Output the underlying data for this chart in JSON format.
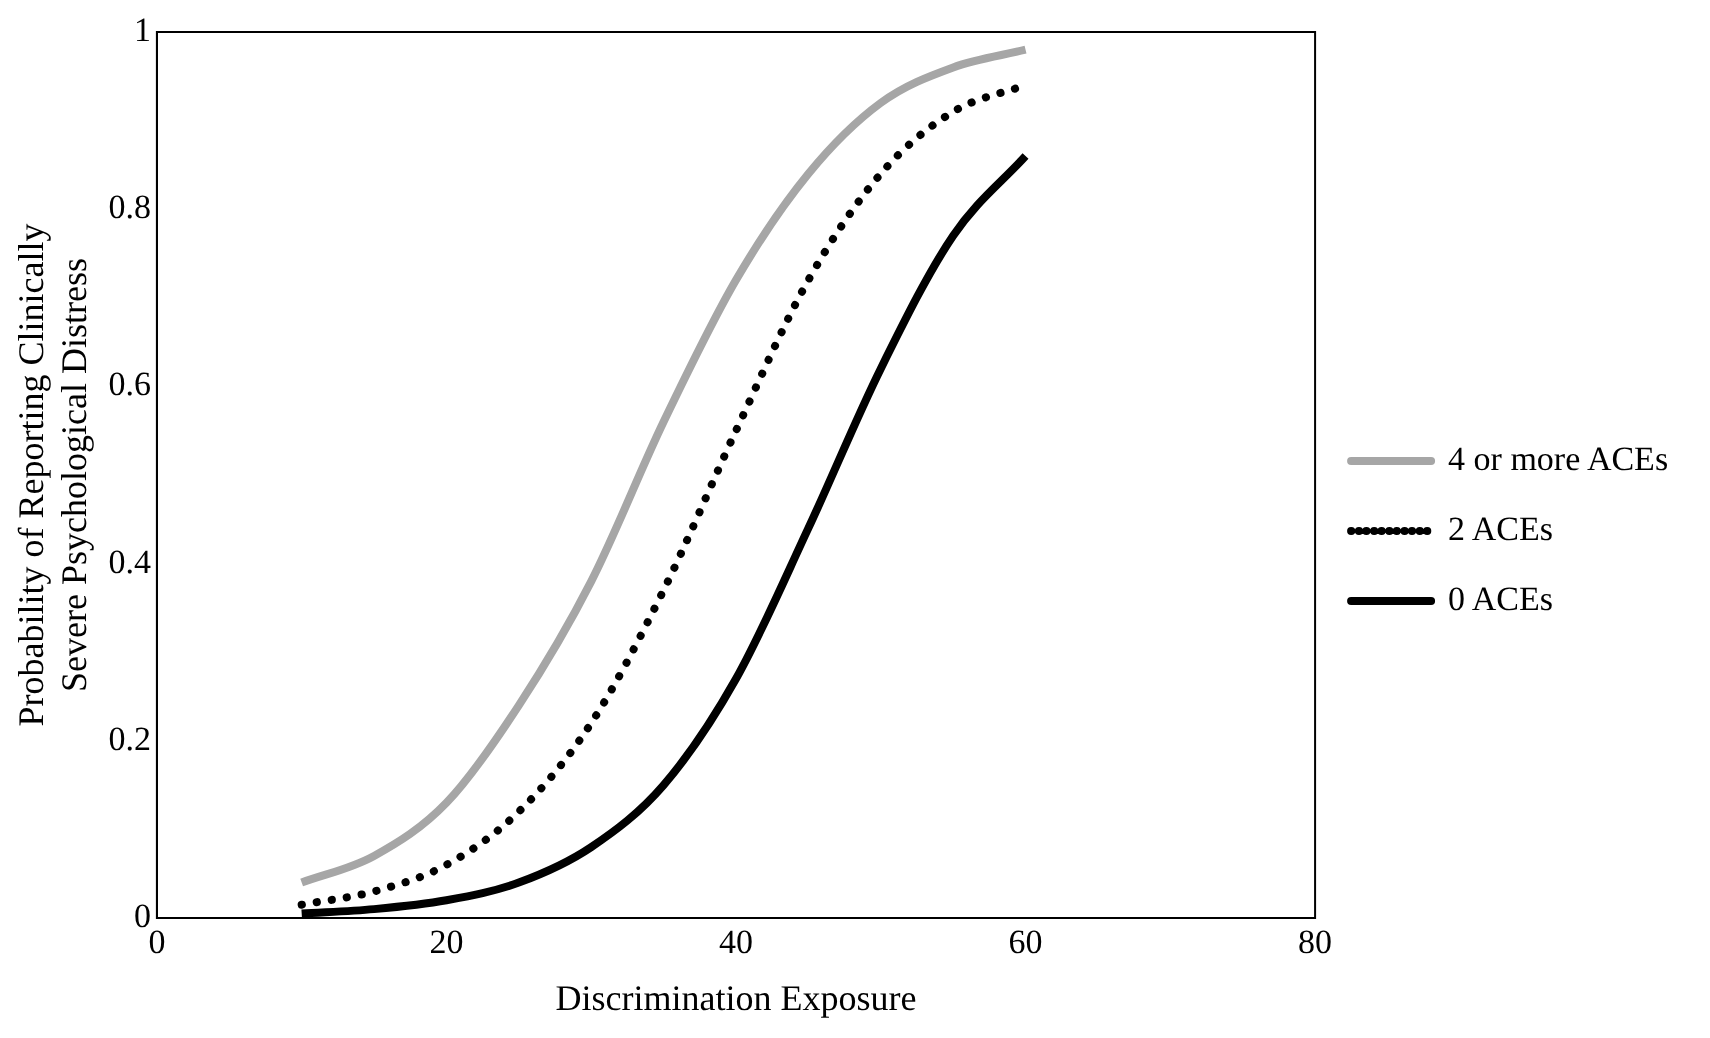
{
  "chart_data": {
    "type": "line",
    "xlabel": "Discrimination Exposure",
    "ylabel": "Probability of Reporting Clinically Severe Psychological Distress",
    "x": [
      10,
      15,
      20,
      25,
      30,
      35,
      40,
      45,
      50,
      55,
      60
    ],
    "xlim": [
      0,
      80
    ],
    "xticks": [
      0,
      20,
      40,
      60,
      80
    ],
    "ylim": [
      0,
      1
    ],
    "yticks": [
      0,
      0.2,
      0.4,
      0.6,
      0.8,
      1
    ],
    "grid": false,
    "legend": "right",
    "marker": "none",
    "series": [
      {
        "name": "4 or more ACEs",
        "color": "#a6a6a6",
        "line_style": "solid",
        "values": [
          0.04,
          0.07,
          0.13,
          0.24,
          0.38,
          0.56,
          0.72,
          0.84,
          0.92,
          0.96,
          0.98
        ]
      },
      {
        "name": "2 ACEs",
        "color": "#000000",
        "line_style": "dotted",
        "values": [
          0.015,
          0.03,
          0.06,
          0.12,
          0.22,
          0.37,
          0.55,
          0.72,
          0.84,
          0.91,
          0.94
        ]
      },
      {
        "name": "0 ACEs",
        "color": "#000000",
        "line_style": "solid",
        "values": [
          0.005,
          0.01,
          0.02,
          0.04,
          0.08,
          0.15,
          0.27,
          0.44,
          0.62,
          0.77,
          0.86
        ]
      }
    ]
  }
}
